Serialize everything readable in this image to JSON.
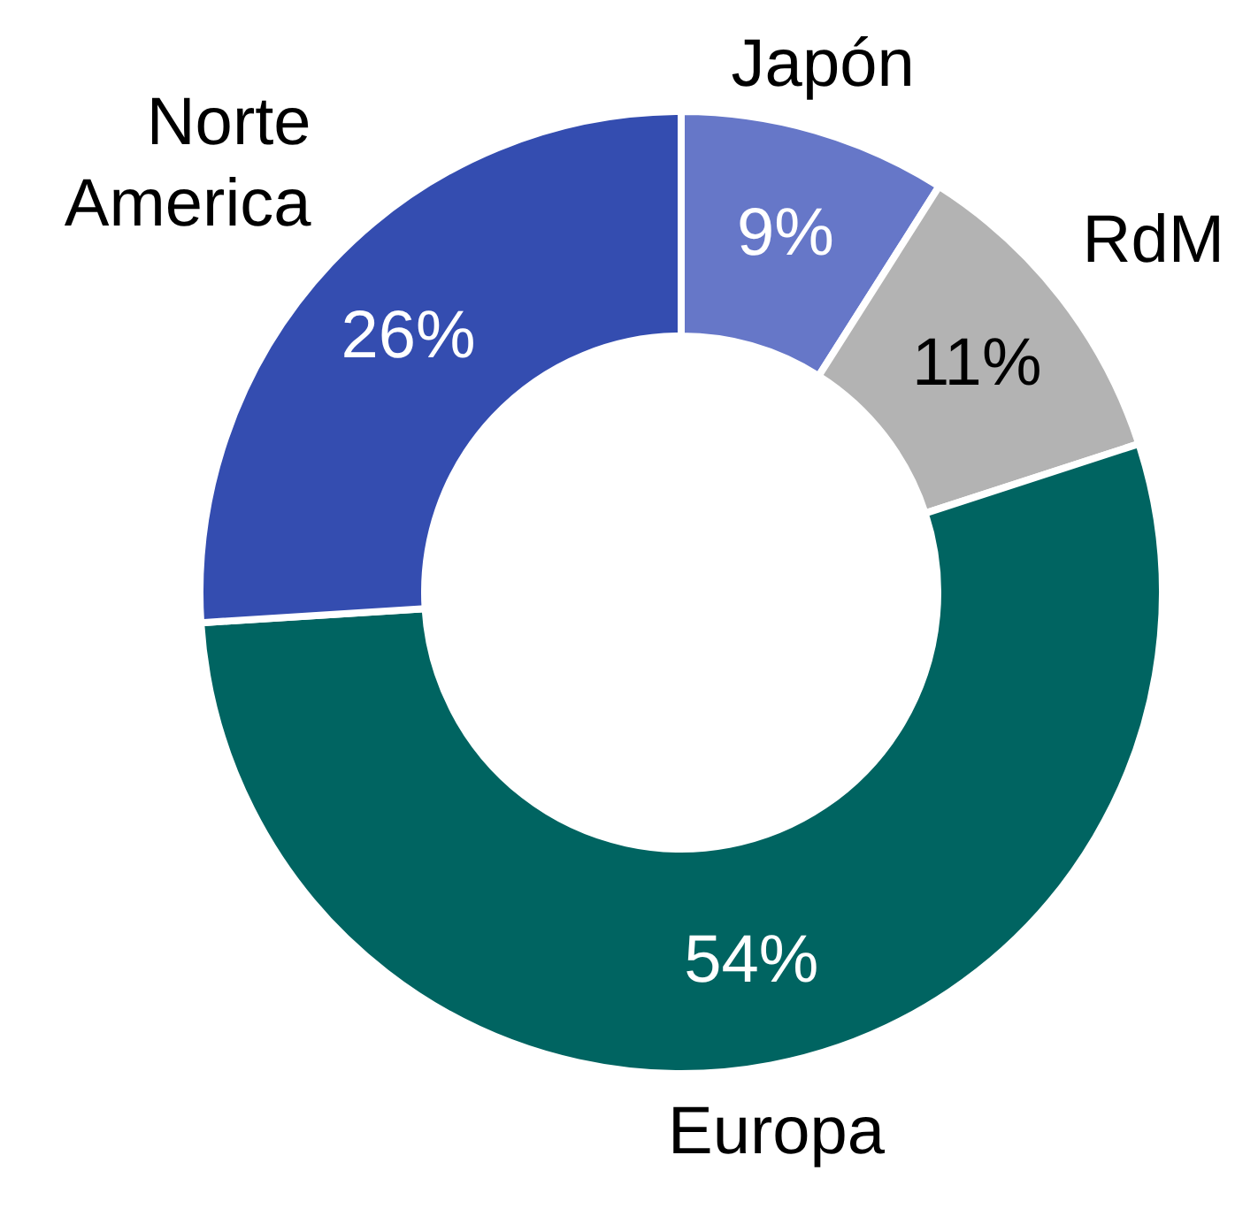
{
  "chart_data": {
    "type": "donut",
    "categories": [
      "Japón",
      "RdM",
      "Europa",
      "Norte\nAmerica"
    ],
    "values": [
      9,
      11,
      54,
      26
    ],
    "colors": [
      "#6677c8",
      "#b3b3b3",
      "#006461",
      "#344db0"
    ],
    "value_labels": [
      "9%",
      "11%",
      "54%",
      "26%"
    ],
    "legend": false
  }
}
